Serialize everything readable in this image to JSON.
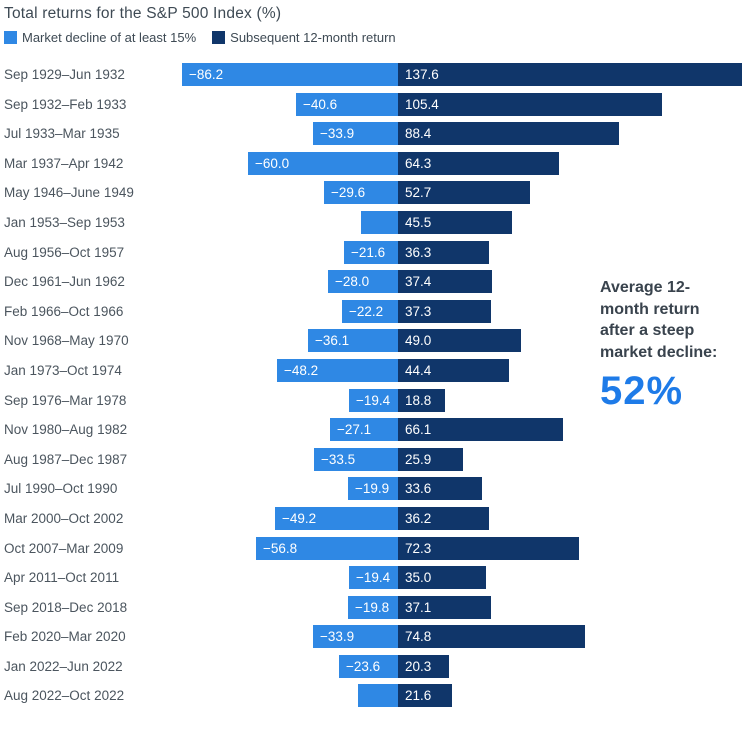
{
  "title": "Total returns for the S&P 500 Index (%)",
  "legend": [
    {
      "name": "decline-swatch",
      "label": "Market decline of at least 15%",
      "color": "#2f88e4"
    },
    {
      "name": "return-swatch",
      "label": "Subsequent 12-month return",
      "color": "#10366a"
    }
  ],
  "annotation": {
    "text_lines": [
      "Average 12-",
      "month return",
      "after a steep",
      "market decline:"
    ],
    "value": "52%",
    "value_color": "#1e7be8",
    "text_color": "#39434d"
  },
  "chart_data": {
    "type": "bar",
    "orientation": "horizontal-diverging",
    "unit": "%",
    "title": "Total returns for the S&P 500 Index (%)",
    "xlim": [
      -90,
      140
    ],
    "grid": false,
    "series": [
      {
        "name": "Market decline of at least 15%",
        "color": "#2f88e4"
      },
      {
        "name": "Subsequent 12-month return",
        "color": "#10366a"
      }
    ],
    "rows": [
      {
        "period": "Sep 1929–Jun 1932",
        "decline": -86.2,
        "decline_label": "−86.2",
        "return": 137.6,
        "return_label": "137.6"
      },
      {
        "period": "Sep 1932–Feb 1933",
        "decline": -40.6,
        "decline_label": "−40.6",
        "return": 105.4,
        "return_label": "105.4"
      },
      {
        "period": "Jul 1933–Mar 1935",
        "decline": -33.9,
        "decline_label": "−33.9",
        "return": 88.4,
        "return_label": "88.4"
      },
      {
        "period": "Mar 1937–Apr 1942",
        "decline": -60.0,
        "decline_label": "−60.0",
        "return": 64.3,
        "return_label": "64.3"
      },
      {
        "period": "May 1946–June 1949",
        "decline": -29.6,
        "decline_label": "−29.6",
        "return": 52.7,
        "return_label": "52.7"
      },
      {
        "period": "Jan 1953–Sep 1953",
        "decline": -14.8,
        "decline_label": "",
        "return": 45.5,
        "return_label": "45.5"
      },
      {
        "period": "Aug 1956–Oct 1957",
        "decline": -21.6,
        "decline_label": "−21.6",
        "return": 36.3,
        "return_label": "36.3"
      },
      {
        "period": "Dec 1961–Jun 1962",
        "decline": -28.0,
        "decline_label": "−28.0",
        "return": 37.4,
        "return_label": "37.4"
      },
      {
        "period": "Feb 1966–Oct 1966",
        "decline": -22.2,
        "decline_label": "−22.2",
        "return": 37.3,
        "return_label": "37.3"
      },
      {
        "period": "Nov 1968–May 1970",
        "decline": -36.1,
        "decline_label": "−36.1",
        "return": 49.0,
        "return_label": "49.0"
      },
      {
        "period": "Jan 1973–Oct 1974",
        "decline": -48.2,
        "decline_label": "−48.2",
        "return": 44.4,
        "return_label": "44.4"
      },
      {
        "period": "Sep 1976–Mar 1978",
        "decline": -19.4,
        "decline_label": "−19.4",
        "return": 18.8,
        "return_label": "18.8"
      },
      {
        "period": "Nov 1980–Aug 1982",
        "decline": -27.1,
        "decline_label": "−27.1",
        "return": 66.1,
        "return_label": "66.1"
      },
      {
        "period": "Aug 1987–Dec 1987",
        "decline": -33.5,
        "decline_label": "−33.5",
        "return": 25.9,
        "return_label": "25.9"
      },
      {
        "period": "Jul 1990–Oct 1990",
        "decline": -19.9,
        "decline_label": "−19.9",
        "return": 33.6,
        "return_label": "33.6"
      },
      {
        "period": "Mar 2000–Oct 2002",
        "decline": -49.2,
        "decline_label": "−49.2",
        "return": 36.2,
        "return_label": "36.2"
      },
      {
        "period": "Oct 2007–Mar 2009",
        "decline": -56.8,
        "decline_label": "−56.8",
        "return": 72.3,
        "return_label": "72.3"
      },
      {
        "period": "Apr 2011–Oct 2011",
        "decline": -19.4,
        "decline_label": "−19.4",
        "return": 35.0,
        "return_label": "35.0"
      },
      {
        "period": "Sep 2018–Dec 2018",
        "decline": -19.8,
        "decline_label": "−19.8",
        "return": 37.1,
        "return_label": "37.1"
      },
      {
        "period": "Feb 2020–Mar 2020",
        "decline": -33.9,
        "decline_label": "−33.9",
        "return": 74.8,
        "return_label": "74.8"
      },
      {
        "period": "Jan 2022–Jun 2022",
        "decline": -23.6,
        "decline_label": "−23.6",
        "return": 20.3,
        "return_label": "20.3"
      },
      {
        "period": "Aug 2022–Oct 2022",
        "decline": -16.1,
        "decline_label": "",
        "return": 21.6,
        "return_label": "21.6"
      }
    ]
  }
}
